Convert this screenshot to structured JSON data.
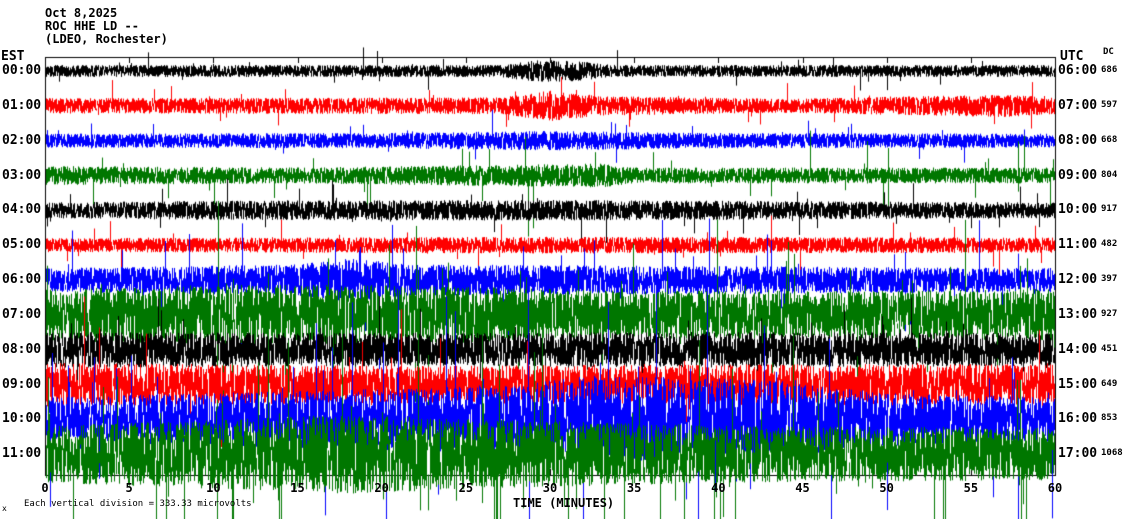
{
  "header": {
    "date": "Oct 8,2025",
    "station": "ROC HHE LD --",
    "location": "(LDEO, Rochester)"
  },
  "axes": {
    "left_label": "EST",
    "right_label": "UTC",
    "dc_label": "DC",
    "x_label": "TIME (MINUTES)",
    "x_ticks": [
      "0",
      "5",
      "10",
      "15",
      "20",
      "25",
      "30",
      "35",
      "40",
      "45",
      "50",
      "55",
      "60"
    ]
  },
  "footer": {
    "note": "Each vertical division = 333.33 microvolts",
    "marker": "x"
  },
  "chart_data": {
    "type": "line",
    "title": "ROC HHE LD -- helicorder (LDEO, Rochester), Oct 8,2025",
    "x_range_minutes": [
      0,
      60
    ],
    "xlabel": "TIME (MINUTES)",
    "trace_colors_cycle": [
      "#000000",
      "#ff0000",
      "#0000ff",
      "#007700"
    ],
    "vertical_division_microvolts": 333.33,
    "rows": [
      {
        "est": "00:00",
        "utc": "06:00",
        "dc": "686",
        "color": "#000000",
        "amp": 6,
        "spike_prob": 0.01,
        "spike_amp": 2.0,
        "envelope": [
          [
            0,
            1
          ],
          [
            27,
            1
          ],
          [
            29,
            1.8
          ],
          [
            31,
            1.8
          ],
          [
            34,
            1
          ],
          [
            60,
            1
          ]
        ]
      },
      {
        "est": "01:00",
        "utc": "07:00",
        "dc": "597",
        "color": "#ff0000",
        "amp": 7,
        "spike_prob": 0.01,
        "spike_amp": 2.0,
        "envelope": [
          [
            0,
            1.1
          ],
          [
            27,
            1.2
          ],
          [
            30,
            2.2
          ],
          [
            33,
            1.4
          ],
          [
            44,
            1
          ],
          [
            50,
            1.3
          ],
          [
            57,
            1.6
          ],
          [
            60,
            1.2
          ]
        ]
      },
      {
        "est": "02:00",
        "utc": "08:00",
        "dc": "668",
        "color": "#0000ff",
        "amp": 7,
        "spike_prob": 0.01,
        "spike_amp": 2.0,
        "envelope": [
          [
            0,
            1
          ],
          [
            20,
            1.1
          ],
          [
            30,
            1.4
          ],
          [
            40,
            1.1
          ],
          [
            60,
            1
          ]
        ]
      },
      {
        "est": "03:00",
        "utc": "09:00",
        "dc": "804",
        "color": "#007700",
        "amp": 8,
        "spike_prob": 0.012,
        "spike_amp": 3.0,
        "envelope": [
          [
            0,
            1.2
          ],
          [
            15,
            1
          ],
          [
            33,
            1.5
          ],
          [
            35,
            1
          ],
          [
            60,
            1
          ]
        ]
      },
      {
        "est": "04:00",
        "utc": "10:00",
        "dc": "917",
        "color": "#000000",
        "amp": 8,
        "spike_prob": 0.01,
        "spike_amp": 2.0,
        "envelope": [
          [
            0,
            1
          ],
          [
            10,
            1.2
          ],
          [
            30,
            1.3
          ],
          [
            60,
            1
          ]
        ]
      },
      {
        "est": "05:00",
        "utc": "11:00",
        "dc": "482",
        "color": "#ff0000",
        "amp": 7,
        "spike_prob": 0.01,
        "spike_amp": 2.5,
        "envelope": [
          [
            0,
            1
          ],
          [
            30,
            1.2
          ],
          [
            60,
            1.1
          ]
        ]
      },
      {
        "est": "06:00",
        "utc": "12:00",
        "dc": "397",
        "color": "#0000ff",
        "amp": 12,
        "spike_prob": 0.015,
        "spike_amp": 3.0,
        "envelope": [
          [
            0,
            1
          ],
          [
            15,
            1.3
          ],
          [
            18,
            1.8
          ],
          [
            22,
            1.3
          ],
          [
            60,
            1
          ]
        ]
      },
      {
        "est": "07:00",
        "utc": "13:00",
        "dc": "927",
        "color": "#007700",
        "amp": 20,
        "spike_prob": 0.02,
        "spike_amp": 2.5,
        "envelope": [
          [
            0,
            1.3
          ],
          [
            10,
            1.5
          ],
          [
            20,
            1.5
          ],
          [
            35,
            1.2
          ],
          [
            50,
            1.2
          ],
          [
            60,
            1.3
          ]
        ]
      },
      {
        "est": "08:00",
        "utc": "14:00",
        "dc": "451",
        "color": "#000000",
        "amp": 15,
        "spike_prob": 0.015,
        "spike_amp": 2.0,
        "envelope": [
          [
            0,
            1.2
          ],
          [
            25,
            1.1
          ],
          [
            40,
            1.2
          ],
          [
            60,
            1.1
          ]
        ]
      },
      {
        "est": "09:00",
        "utc": "15:00",
        "dc": "649",
        "color": "#ff0000",
        "amp": 17,
        "spike_prob": 0.015,
        "spike_amp": 2.2,
        "envelope": [
          [
            0,
            1.3
          ],
          [
            20,
            1.1
          ],
          [
            40,
            1.2
          ],
          [
            60,
            1.2
          ]
        ]
      },
      {
        "est": "10:00",
        "utc": "16:00",
        "dc": "853",
        "color": "#0000ff",
        "amp": 22,
        "spike_prob": 0.02,
        "spike_amp": 2.5,
        "envelope": [
          [
            0,
            1
          ],
          [
            25,
            1.5
          ],
          [
            33,
            2
          ],
          [
            43,
            1.8
          ],
          [
            50,
            1.2
          ],
          [
            60,
            1
          ]
        ]
      },
      {
        "est": "11:00",
        "utc": "17:00",
        "dc": "1068",
        "color": "#007700",
        "amp": 22,
        "spike_prob": 0.02,
        "spike_amp": 3.0,
        "envelope": [
          [
            0,
            1.3
          ],
          [
            18,
            1.8
          ],
          [
            25,
            1.6
          ],
          [
            40,
            1.3
          ],
          [
            60,
            1.2
          ]
        ]
      }
    ]
  }
}
